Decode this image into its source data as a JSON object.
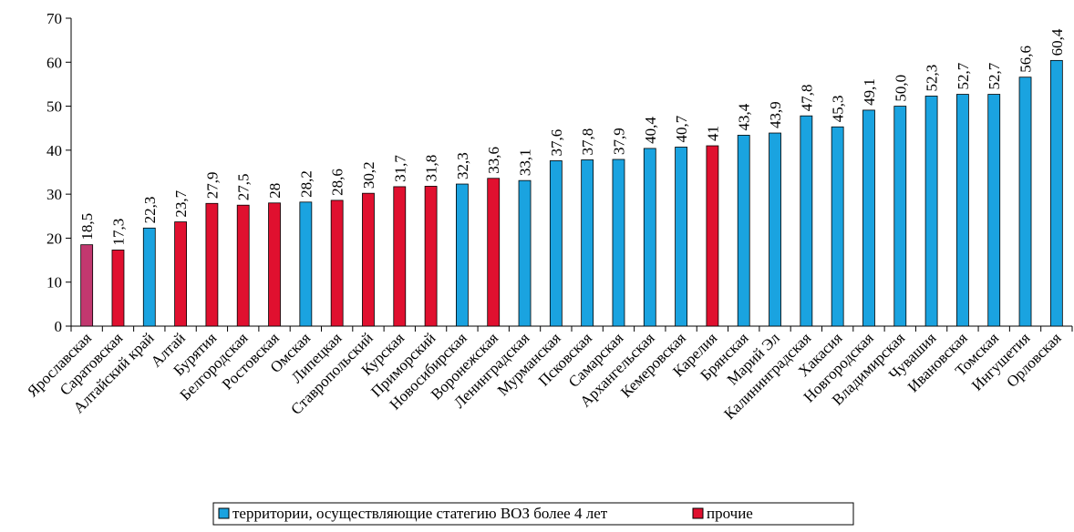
{
  "chart_data": {
    "type": "bar",
    "categories": [
      "Ярославская",
      "Саратовская",
      "Алтайский край",
      "Алтай",
      "Бурятия",
      "Белгородская",
      "Ростовская",
      "Омская",
      "Липецкая",
      "Ставропольский",
      "Курская",
      "Приморский",
      "Новосибирская",
      "Воронежская",
      "Ленинградская",
      "Мурманская",
      "Псковская",
      "Самарская",
      "Архангельская",
      "Кемеровская",
      "Карелия",
      "Брянская",
      "Марий Эл",
      "Калининградская",
      "Хакасия",
      "Новгородская",
      "Владимирская",
      "Чувашия",
      "Ивановская",
      "Томская",
      "Ингушетия",
      "Орловская"
    ],
    "values": [
      18.5,
      17.3,
      22.3,
      23.7,
      27.9,
      27.5,
      28,
      28.2,
      28.6,
      30.2,
      31.7,
      31.8,
      32.3,
      33.6,
      33.1,
      37.6,
      37.8,
      37.9,
      40.4,
      40.7,
      41,
      43.4,
      43.9,
      47.8,
      45.3,
      49.1,
      50.0,
      52.3,
      52.7,
      52.7,
      56.6,
      60.4
    ],
    "value_labels": [
      "18,5",
      "17,3",
      "22,3",
      "23,7",
      "27,9",
      "27,5",
      "28",
      "28,2",
      "28,6",
      "30,2",
      "31,7",
      "31,8",
      "32,3",
      "33,6",
      "33,1",
      "37,6",
      "37,8",
      "37,9",
      "40,4",
      "40,7",
      "41",
      "43,4",
      "43,9",
      "47,8",
      "45,3",
      "49,1",
      "50,0",
      "52,3",
      "52,7",
      "52,7",
      "56,6",
      "60,4"
    ],
    "colors": [
      "#c2386f",
      "#e0102f",
      "#1aa3e0",
      "#e0102f",
      "#e0102f",
      "#e0102f",
      "#e0102f",
      "#1aa3e0",
      "#e0102f",
      "#e0102f",
      "#e0102f",
      "#e0102f",
      "#1aa3e0",
      "#e0102f",
      "#1aa3e0",
      "#1aa3e0",
      "#1aa3e0",
      "#1aa3e0",
      "#1aa3e0",
      "#1aa3e0",
      "#e0102f",
      "#1aa3e0",
      "#1aa3e0",
      "#1aa3e0",
      "#1aa3e0",
      "#1aa3e0",
      "#1aa3e0",
      "#1aa3e0",
      "#1aa3e0",
      "#1aa3e0",
      "#1aa3e0",
      "#1aa3e0"
    ],
    "legend": [
      {
        "label": "территории, осуществляющие статегию ВОЗ более 4 лет",
        "color": "#1aa3e0"
      },
      {
        "label": "прочие",
        "color": "#e0102f"
      }
    ],
    "ylim": [
      0,
      70
    ],
    "yticks": [
      0,
      10,
      20,
      30,
      40,
      50,
      60,
      70
    ]
  }
}
